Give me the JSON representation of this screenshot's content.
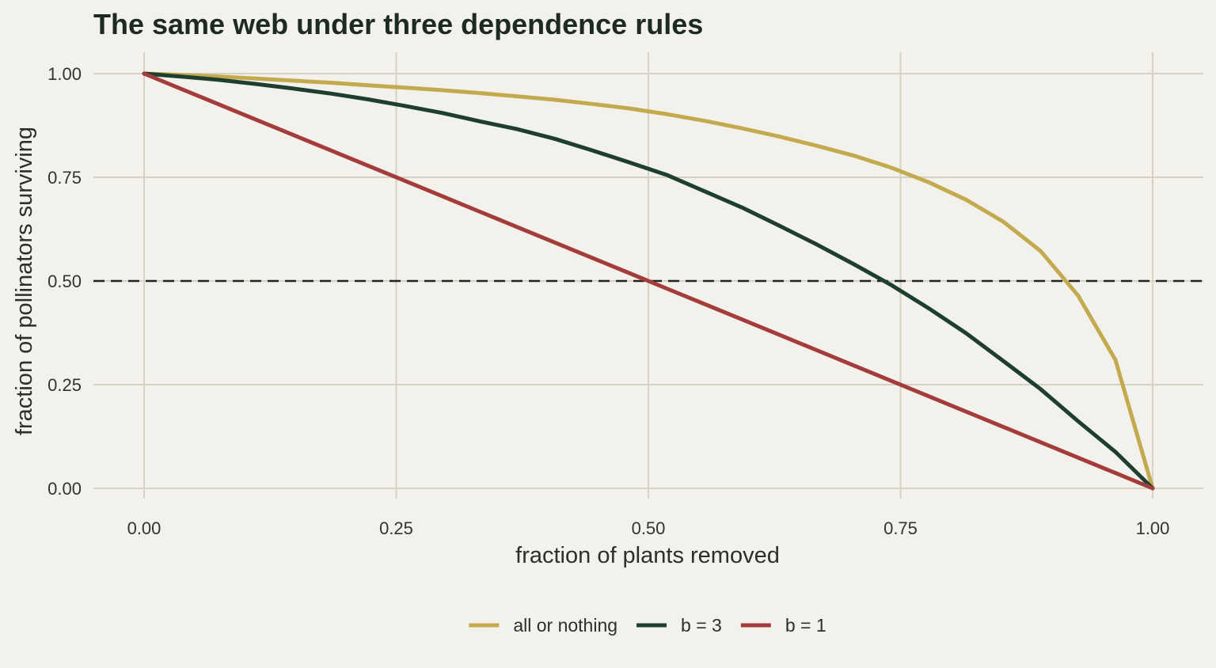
{
  "chart_data": {
    "type": "line",
    "title": "The same web under three dependence rules",
    "xlabel": "fraction of plants removed",
    "ylabel": "fraction of pollinators surviving",
    "xlim": [
      0,
      1
    ],
    "ylim": [
      0,
      1
    ],
    "xticks": [
      "0.00",
      "0.25",
      "0.50",
      "0.75",
      "1.00"
    ],
    "yticks": [
      "0.00",
      "0.25",
      "0.50",
      "0.75",
      "1.00"
    ],
    "grid": true,
    "legend_position": "bottom",
    "reference_line": {
      "y": 0.5,
      "style": "dashed"
    },
    "x": [
      0,
      0.037,
      0.074,
      0.111,
      0.148,
      0.185,
      0.222,
      0.259,
      0.296,
      0.333,
      0.37,
      0.407,
      0.444,
      0.481,
      0.519,
      0.556,
      0.593,
      0.63,
      0.667,
      0.704,
      0.741,
      0.778,
      0.815,
      0.852,
      0.889,
      0.926,
      0.963,
      1.0
    ],
    "series": [
      {
        "name": "all or nothing",
        "color": "#c4aa4e",
        "values": [
          1.0,
          0.997,
          0.993,
          0.988,
          0.983,
          0.978,
          0.972,
          0.966,
          0.96,
          0.953,
          0.945,
          0.937,
          0.927,
          0.916,
          0.902,
          0.886,
          0.868,
          0.848,
          0.826,
          0.802,
          0.773,
          0.738,
          0.696,
          0.643,
          0.572,
          0.465,
          0.31,
          0.0
        ]
      },
      {
        "name": "b = 3",
        "color": "#1e3f2e",
        "values": [
          1.0,
          0.993,
          0.985,
          0.975,
          0.964,
          0.952,
          0.938,
          0.922,
          0.905,
          0.885,
          0.866,
          0.843,
          0.815,
          0.786,
          0.755,
          0.716,
          0.677,
          0.633,
          0.588,
          0.54,
          0.49,
          0.434,
          0.374,
          0.307,
          0.239,
          0.162,
          0.088,
          0.0
        ]
      },
      {
        "name": "b = 1",
        "color": "#a43c3c",
        "values": [
          1.0,
          0.963,
          0.926,
          0.889,
          0.852,
          0.815,
          0.778,
          0.741,
          0.704,
          0.667,
          0.63,
          0.593,
          0.556,
          0.519,
          0.481,
          0.444,
          0.407,
          0.37,
          0.333,
          0.296,
          0.259,
          0.222,
          0.185,
          0.148,
          0.111,
          0.074,
          0.037,
          0.0
        ]
      }
    ]
  }
}
